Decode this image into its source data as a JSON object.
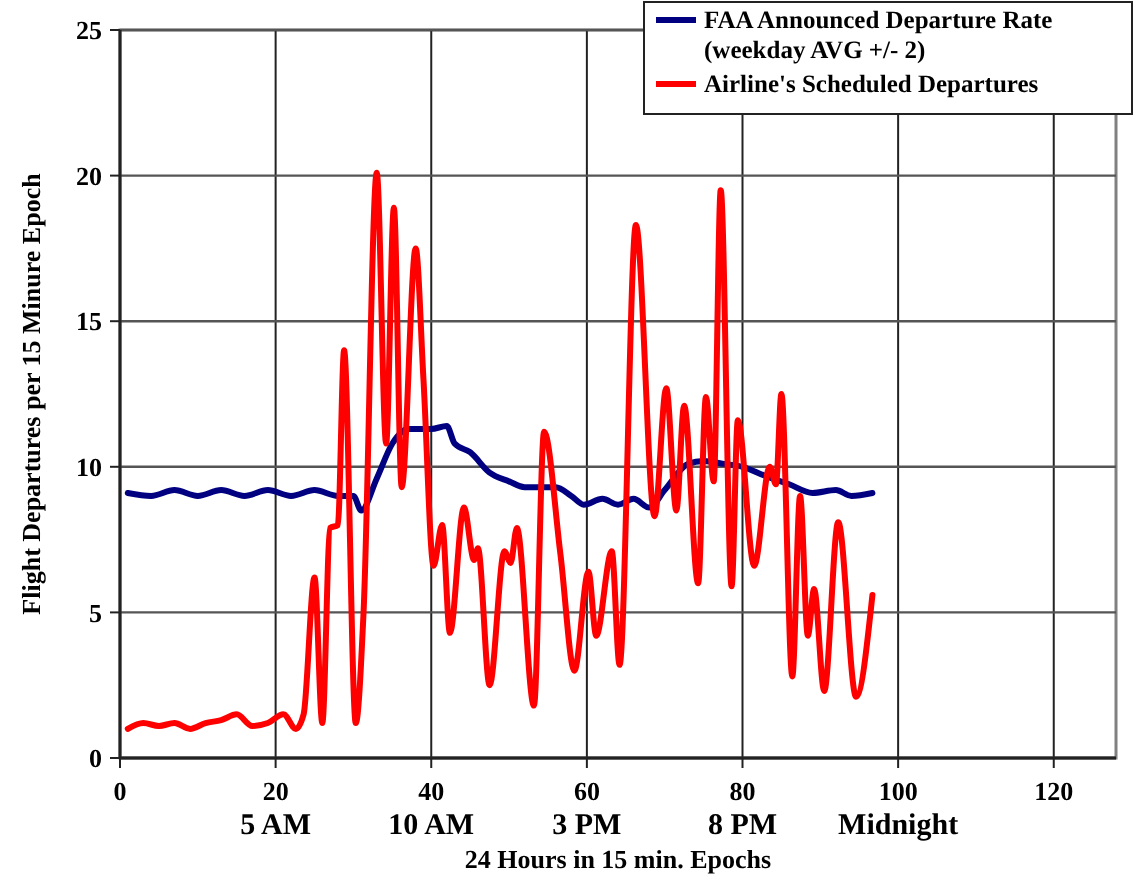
{
  "chart_data": {
    "type": "line",
    "xlabel": "24 Hours in 15 min. Epochs",
    "ylabel": "Flight Departures per 15 Minure Epoch",
    "xlim": [
      0,
      128
    ],
    "xticks": [
      0,
      20,
      40,
      60,
      80,
      100,
      120
    ],
    "ylim": [
      0,
      25
    ],
    "yticks": [
      0,
      5,
      10,
      15,
      20,
      25
    ],
    "grid": true,
    "legend": "top right",
    "marker": "none",
    "line_style": "solid",
    "annotations": [
      "5 AM",
      "10 AM",
      "3 PM",
      "8 PM",
      "Midnight"
    ],
    "series": [
      {
        "name": "FAA Announced Departure Rate (weekday AVG +/- 2)",
        "color": "#000080",
        "x": [
          1,
          4,
          7,
          10,
          13,
          16,
          19,
          22,
          25,
          28,
          30,
          31,
          33,
          35,
          37,
          40,
          42,
          43,
          45,
          47.5,
          50,
          52,
          56,
          58,
          59.6,
          62,
          64,
          66,
          68,
          70,
          73,
          75,
          77.6,
          80,
          82.8,
          86,
          89,
          92,
          94,
          96.7
        ],
        "values": [
          9.1,
          9.0,
          9.2,
          9.0,
          9.2,
          9.0,
          9.2,
          9.0,
          9.2,
          9.0,
          9.0,
          8.5,
          9.6,
          10.8,
          11.3,
          11.3,
          11.4,
          10.8,
          10.5,
          9.8,
          9.5,
          9.3,
          9.3,
          9.0,
          8.7,
          8.9,
          8.7,
          8.9,
          8.6,
          9.2,
          10.1,
          10.2,
          10.1,
          10.0,
          9.7,
          9.4,
          9.1,
          9.2,
          9.0,
          9.1
        ]
      },
      {
        "name": "Airline's Scheduled Departures",
        "color": "#ff0000",
        "x": [
          1,
          3,
          5,
          7,
          9,
          11,
          13,
          15,
          17,
          19,
          21,
          22.6,
          23.6,
          25,
          26,
          27,
          28,
          28.8,
          30.3,
          31.3,
          33,
          34.2,
          35.2,
          36.2,
          38,
          39,
          40.3,
          41.4,
          42.4,
          44.2,
          45.5,
          46,
          47.5,
          49.4,
          50.2,
          51,
          53.2,
          54.5,
          56.6,
          58.4,
          60.2,
          61.2,
          63.2,
          64.2,
          66.3,
          68.7,
          70.2,
          71.5,
          72.5,
          74.3,
          75.3,
          76.3,
          77.2,
          78.6,
          79.4,
          81.5,
          83.5,
          84.3,
          85,
          86.4,
          87.4,
          88.4,
          89.2,
          90.5,
          92.3,
          94.6,
          96.7
        ],
        "values": [
          1.0,
          1.2,
          1.1,
          1.2,
          1.0,
          1.2,
          1.3,
          1.5,
          1.1,
          1.2,
          1.5,
          1.0,
          1.5,
          6.2,
          1.2,
          7.9,
          8.0,
          14.0,
          1.2,
          5.0,
          20.1,
          10.8,
          18.9,
          9.3,
          17.5,
          13.0,
          6.6,
          8.0,
          4.3,
          8.6,
          6.8,
          7.2,
          2.5,
          7.1,
          6.7,
          7.9,
          1.8,
          11.2,
          7.0,
          3.0,
          6.4,
          4.2,
          7.1,
          3.2,
          18.3,
          8.3,
          12.7,
          8.5,
          12.1,
          6.0,
          12.4,
          9.5,
          19.5,
          5.9,
          11.6,
          6.6,
          10.0,
          9.4,
          12.5,
          2.8,
          9.0,
          4.2,
          5.8,
          2.3,
          8.1,
          2.1,
          5.6
        ]
      }
    ]
  }
}
